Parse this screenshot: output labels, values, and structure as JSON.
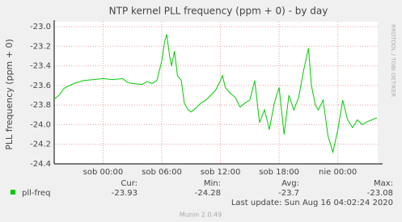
{
  "chart_data": {
    "type": "line",
    "title": "NTP kernel PLL frequency (ppm + 0) - by day",
    "y_label": "PLL frequency (ppm + 0)",
    "watermark": "RRDTOOL / TOBI OETIKER",
    "x": [
      -5,
      -4.5,
      -4,
      -3,
      -2,
      -1,
      0,
      1,
      2,
      2.5,
      3,
      4,
      4.5,
      5,
      5.5,
      6,
      6.3,
      6.5,
      6.8,
      7,
      7.3,
      7.6,
      8,
      8.3,
      8.7,
      9,
      9.5,
      10,
      10.5,
      11,
      11.5,
      12,
      12.2,
      12.5,
      13,
      13.5,
      14,
      14.5,
      15,
      15.5,
      16,
      16.5,
      17,
      17.5,
      18,
      18.5,
      19,
      19.5,
      20,
      20.5,
      21,
      21.3,
      21.7,
      22,
      22.5,
      23,
      23.5,
      24,
      24.5,
      25,
      25.5,
      26,
      26.5,
      27,
      27.5,
      28
    ],
    "series": [
      {
        "name": "pll-freq",
        "color": "#00cc00",
        "values": [
          -23.74,
          -23.7,
          -23.63,
          -23.58,
          -23.55,
          -23.54,
          -23.53,
          -23.54,
          -23.53,
          -23.57,
          -23.58,
          -23.59,
          -23.56,
          -23.58,
          -23.55,
          -23.35,
          -23.15,
          -23.08,
          -23.3,
          -23.4,
          -23.25,
          -23.5,
          -23.55,
          -23.78,
          -23.85,
          -23.87,
          -23.83,
          -23.78,
          -23.75,
          -23.7,
          -23.65,
          -23.55,
          -23.5,
          -23.62,
          -23.68,
          -23.72,
          -23.82,
          -23.78,
          -23.75,
          -23.55,
          -23.98,
          -23.85,
          -24.05,
          -23.78,
          -23.62,
          -24.1,
          -23.7,
          -23.85,
          -23.72,
          -23.45,
          -23.22,
          -23.6,
          -23.8,
          -23.85,
          -23.75,
          -24.12,
          -24.28,
          -24.05,
          -23.75,
          -23.95,
          -24.03,
          -23.95,
          -24.0,
          -23.97,
          -23.95,
          -23.93
        ]
      }
    ],
    "xlim": [
      -5,
      28.08
    ],
    "xticks": [
      {
        "value": 0,
        "label": "sob 00:00"
      },
      {
        "value": 6,
        "label": "sob 06:00"
      },
      {
        "value": 12,
        "label": "sob 12:00"
      },
      {
        "value": 18,
        "label": "sob 18:00"
      },
      {
        "value": 24,
        "label": "nie 00:00"
      }
    ],
    "ylim": [
      -24.4,
      -23.0
    ],
    "yticks": [
      {
        "value": -23.0,
        "label": "-23.0"
      },
      -23.2,
      -23.4,
      -23.6,
      -23.8,
      {
        "value": -24.0,
        "label": "-24.0"
      },
      -24.2,
      -24.4
    ],
    "grid": true,
    "stats": {
      "headers": [
        "Cur:",
        "Min:",
        "Avg:",
        "Max:"
      ],
      "values": [
        -23.93,
        -24.28,
        -23.7,
        -23.08
      ]
    },
    "last_update": "Last update: Sun Aug 16 04:02:24 2020",
    "footer": "Munin 2.0.49"
  }
}
